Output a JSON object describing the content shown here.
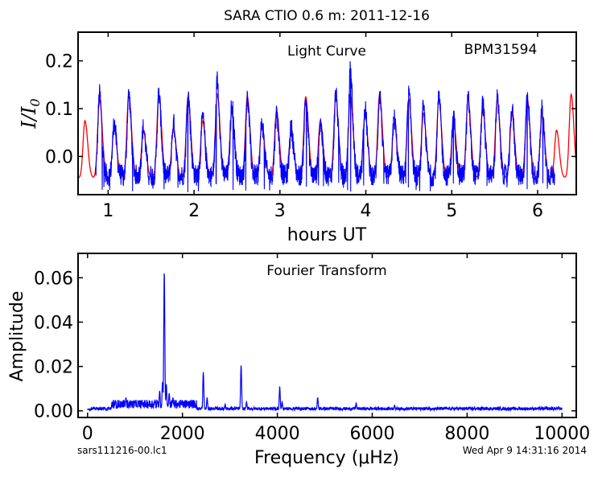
{
  "suptitle": "SARA CTIO 0.6 m:  2011-12-16",
  "footer": {
    "left": "sars111216-00.lc1",
    "right": "Wed Apr  9 14:31:16 2014"
  },
  "colors": {
    "data": "#0000ff",
    "model": "#ff0000",
    "axes": "#000000"
  },
  "chart_data": [
    {
      "type": "line",
      "annotation": "Light Curve",
      "object_label": "BPM31594",
      "xlabel": "hours UT",
      "ylabel": "I/I0",
      "xlim": [
        0.65,
        6.45
      ],
      "ylim": [
        -0.08,
        0.26
      ],
      "xticks": [
        1,
        2,
        3,
        4,
        5,
        6
      ],
      "xtick_labels": [
        "1",
        "2",
        "3",
        "4",
        "5",
        "6"
      ],
      "yticks": [
        0.0,
        0.1,
        0.2
      ],
      "ytick_labels": [
        "0.0",
        "0.1",
        "0.2"
      ],
      "grid": false,
      "pulse_period_hours": 0.1718,
      "first_pulse_peak_hours": 0.9,
      "series": [
        {
          "role": "observed data (blue)",
          "x_range": [
            0.85,
            6.2
          ],
          "peak_times": [
            0.9,
            1.07,
            1.24,
            1.41,
            1.59,
            1.76,
            1.93,
            2.1,
            2.27,
            2.44,
            2.62,
            2.79,
            2.96,
            3.13,
            3.3,
            3.47,
            3.65,
            3.82,
            3.99,
            4.16,
            4.33,
            4.5,
            4.67,
            4.85,
            5.02,
            5.19,
            5.36,
            5.53,
            5.7,
            5.88,
            6.05
          ],
          "peak_values": [
            0.13,
            0.07,
            0.13,
            0.06,
            0.13,
            0.07,
            0.13,
            0.08,
            0.16,
            0.11,
            0.12,
            0.07,
            0.09,
            0.06,
            0.12,
            0.07,
            0.13,
            0.18,
            0.1,
            0.13,
            0.08,
            0.13,
            0.1,
            0.12,
            0.08,
            0.12,
            0.11,
            0.12,
            0.1,
            0.13,
            0.1
          ],
          "trough_level": -0.04,
          "min_value": -0.075
        },
        {
          "role": "fitted model (red)",
          "x_range": [
            0.65,
            6.45
          ],
          "peak_times": [
            0.73,
            0.9,
            1.07,
            1.24,
            1.41,
            1.59,
            1.76,
            1.93,
            2.1,
            2.27,
            2.44,
            2.62,
            2.79,
            2.96,
            3.13,
            3.3,
            3.47,
            3.65,
            3.82,
            3.99,
            4.16,
            4.33,
            4.5,
            4.67,
            4.85,
            5.02,
            5.19,
            5.36,
            5.53,
            5.7,
            5.88,
            6.05,
            6.22,
            6.39
          ],
          "peak_values": [
            0.075,
            0.12,
            0.06,
            0.13,
            0.055,
            0.13,
            0.06,
            0.125,
            0.075,
            0.13,
            0.095,
            0.125,
            0.065,
            0.095,
            0.055,
            0.125,
            0.075,
            0.125,
            0.13,
            0.09,
            0.13,
            0.07,
            0.12,
            0.09,
            0.12,
            0.075,
            0.12,
            0.1,
            0.12,
            0.09,
            0.12,
            0.085,
            0.055,
            0.13
          ],
          "trough_level": -0.045
        }
      ]
    },
    {
      "type": "line",
      "annotation": "Fourier Transform",
      "xlabel": "Frequency (μHz)",
      "ylabel": "Amplitude",
      "xlim": [
        -200,
        10300
      ],
      "ylim": [
        -0.003,
        0.071
      ],
      "xticks": [
        0,
        2000,
        4000,
        6000,
        8000,
        10000
      ],
      "xtick_labels": [
        "0",
        "2000",
        "4000",
        "6000",
        "8000",
        "10000"
      ],
      "yticks": [
        0.0,
        0.02,
        0.04,
        0.06
      ],
      "ytick_labels": [
        "0.00",
        "0.02",
        "0.04",
        "0.06"
      ],
      "grid": false,
      "series": [
        {
          "role": "amplitude spectrum (blue)",
          "x_range": [
            0,
            10000
          ],
          "noise_level": 0.0015,
          "peaks": [
            {
              "x": 810,
              "y": 0.006
            },
            {
              "x": 1420,
              "y": 0.005
            },
            {
              "x": 1520,
              "y": 0.009
            },
            {
              "x": 1580,
              "y": 0.013
            },
            {
              "x": 1617,
              "y": 0.063
            },
            {
              "x": 1660,
              "y": 0.012
            },
            {
              "x": 1720,
              "y": 0.008
            },
            {
              "x": 1800,
              "y": 0.006
            },
            {
              "x": 2440,
              "y": 0.0175
            },
            {
              "x": 2520,
              "y": 0.006
            },
            {
              "x": 2900,
              "y": 0.003
            },
            {
              "x": 3236,
              "y": 0.0205
            },
            {
              "x": 3350,
              "y": 0.004
            },
            {
              "x": 4050,
              "y": 0.011
            },
            {
              "x": 4100,
              "y": 0.004
            },
            {
              "x": 4850,
              "y": 0.006
            },
            {
              "x": 5660,
              "y": 0.0035
            },
            {
              "x": 6470,
              "y": 0.0025
            }
          ]
        }
      ]
    }
  ]
}
